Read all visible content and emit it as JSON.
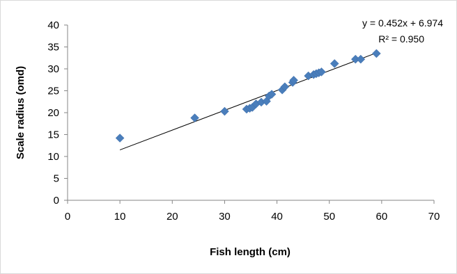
{
  "chart_data": {
    "type": "scatter",
    "title": "",
    "xlabel": "Fish length (cm)",
    "ylabel": "Scale radius (omd)",
    "xlim": [
      0,
      70
    ],
    "ylim": [
      0,
      40
    ],
    "x_ticks": [
      "0",
      "10",
      "20",
      "30",
      "40",
      "50",
      "60",
      "70"
    ],
    "y_ticks": [
      "0",
      "5",
      "10",
      "15",
      "20",
      "25",
      "30",
      "35",
      "40"
    ],
    "grid": false,
    "legend": "none",
    "marker": "diamond",
    "marker_color": "#4a7ebb",
    "series": [
      {
        "points": [
          [
            10,
            14.2
          ],
          [
            24.3,
            18.8
          ],
          [
            30,
            20.3
          ],
          [
            34.2,
            20.8
          ],
          [
            34.8,
            21.0
          ],
          [
            35.3,
            21.2
          ],
          [
            36,
            22.0
          ],
          [
            37,
            22.4
          ],
          [
            38,
            22.6
          ],
          [
            38.5,
            23.8
          ],
          [
            39,
            24.2
          ],
          [
            41,
            25.2
          ],
          [
            41.5,
            25.9
          ],
          [
            43,
            26.9
          ],
          [
            43.2,
            27.4
          ],
          [
            46,
            28.4
          ],
          [
            47,
            28.7
          ],
          [
            47.5,
            28.9
          ],
          [
            48,
            29.1
          ],
          [
            48.5,
            29.3
          ],
          [
            51,
            31.2
          ],
          [
            55,
            32.2
          ],
          [
            56,
            32.2
          ],
          [
            59,
            33.5
          ]
        ]
      }
    ],
    "trendline": {
      "type": "linear",
      "slope": 0.452,
      "intercept": 6.974,
      "x_range": [
        10,
        59
      ],
      "color": "#000000",
      "equation_label": "y = 0.452x + 6.974",
      "r2_label": "R² = 0.950"
    }
  }
}
